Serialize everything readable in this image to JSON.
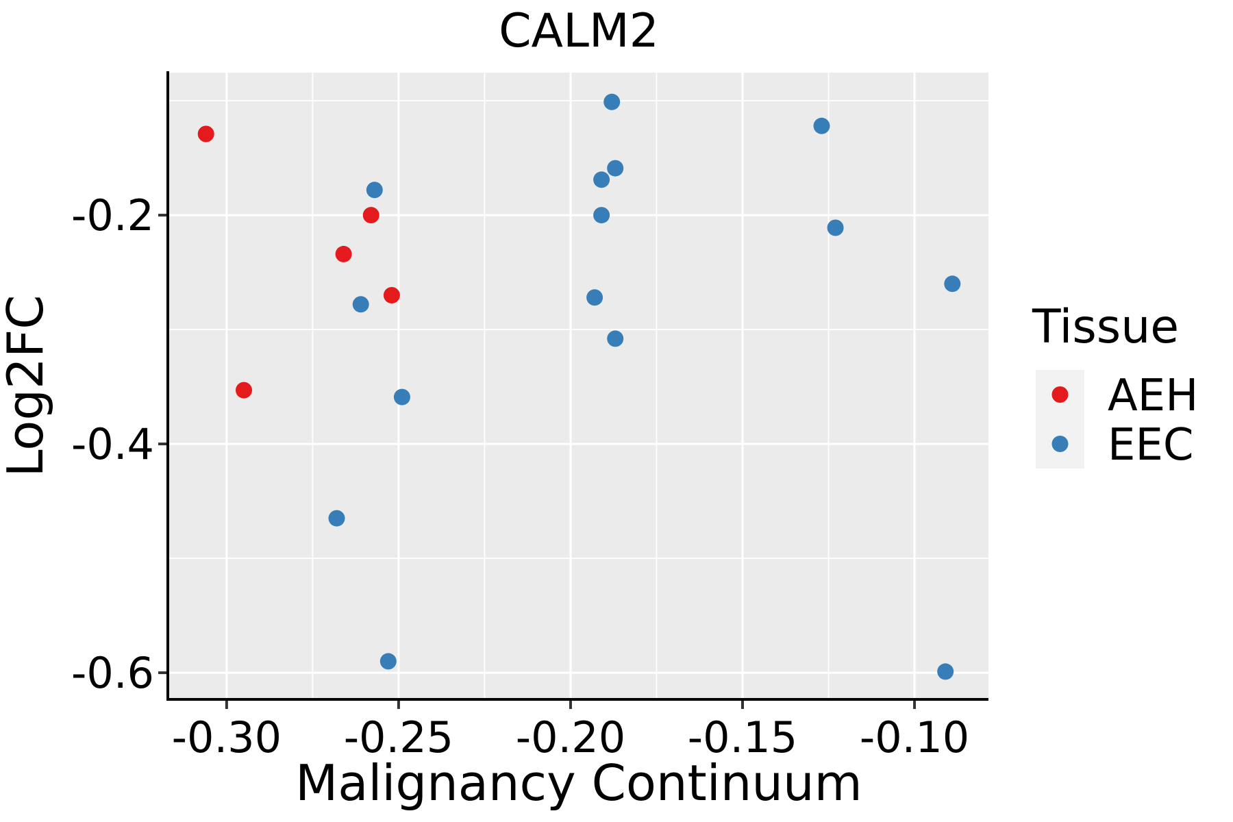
{
  "page": {
    "background": "#FFFFFF"
  },
  "chart_data": {
    "type": "scatter",
    "title": "CALM2",
    "xlabel": "Malignancy Continuum",
    "ylabel": "Log2FC",
    "xlim": [
      -0.3167,
      -0.0785
    ],
    "ylim": [
      -0.6233,
      -0.0754
    ],
    "x_major_ticks": [
      -0.3,
      -0.25,
      -0.2,
      -0.15,
      -0.1
    ],
    "x_tick_labels": [
      "-0.30",
      "-0.25",
      "-0.20",
      "-0.15",
      "-0.10"
    ],
    "x_minor_ticks": [
      -0.275,
      -0.225,
      -0.175,
      -0.125
    ],
    "y_major_ticks": [
      -0.2,
      -0.4,
      -0.6
    ],
    "y_tick_labels": [
      "-0.2",
      "-0.4",
      "-0.6"
    ],
    "y_minor_ticks": [
      -0.1,
      -0.3,
      -0.5
    ],
    "grid": "on",
    "legend_position": "right",
    "legend": {
      "title": "Tissue",
      "entries": [
        {
          "label": "AEH",
          "color": "#E41A1C"
        },
        {
          "label": "EEC",
          "color": "#377EB8"
        }
      ]
    },
    "series": [
      {
        "name": "AEH",
        "color": "#E41A1C",
        "points": [
          [
            -0.306,
            -0.129
          ],
          [
            -0.258,
            -0.2
          ],
          [
            -0.266,
            -0.234
          ],
          [
            -0.252,
            -0.27
          ],
          [
            -0.295,
            -0.353
          ]
        ]
      },
      {
        "name": "EEC",
        "color": "#377EB8",
        "points": [
          [
            -0.257,
            -0.178
          ],
          [
            -0.261,
            -0.278
          ],
          [
            -0.249,
            -0.359
          ],
          [
            -0.268,
            -0.465
          ],
          [
            -0.253,
            -0.59
          ],
          [
            -0.188,
            -0.101
          ],
          [
            -0.187,
            -0.159
          ],
          [
            -0.191,
            -0.169
          ],
          [
            -0.191,
            -0.2
          ],
          [
            -0.193,
            -0.272
          ],
          [
            -0.187,
            -0.308
          ],
          [
            -0.127,
            -0.122
          ],
          [
            -0.123,
            -0.211
          ],
          [
            -0.089,
            -0.26
          ],
          [
            -0.091,
            -0.599
          ]
        ]
      }
    ],
    "style": {
      "panel_bg": "#EBEBEB",
      "grid_color": "#FFFFFF",
      "axis_spine_color": "#000000",
      "tick_mark_color": "#333333",
      "text_color": "#000000",
      "legend_key_bg": "#F2F2F2"
    }
  }
}
